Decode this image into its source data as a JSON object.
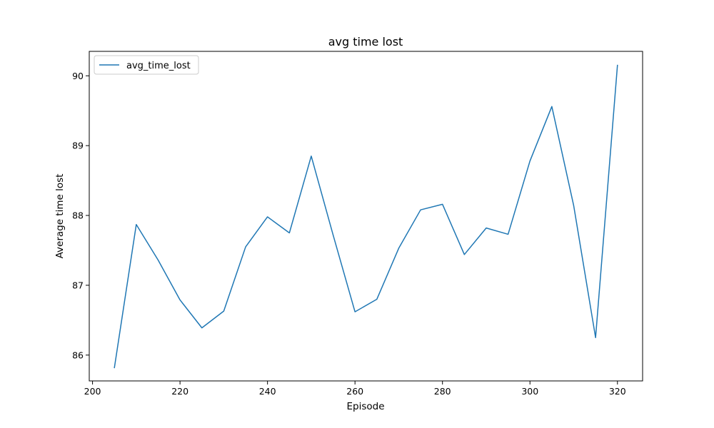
{
  "chart_data": {
    "type": "line",
    "title": "avg time lost",
    "xlabel": "Episode",
    "ylabel": "Average time lost",
    "xlim": [
      199.25,
      325.75
    ],
    "ylim": [
      85.63,
      90.35
    ],
    "xticks": [
      200,
      220,
      240,
      260,
      280,
      300,
      320
    ],
    "yticks": [
      86,
      87,
      88,
      89,
      90
    ],
    "grid": false,
    "legend": "top-left",
    "series": [
      {
        "name": "avg_time_lost",
        "color": "#1f77b4",
        "x": [
          205,
          210,
          215,
          220,
          225,
          230,
          235,
          240,
          245,
          250,
          255,
          260,
          265,
          270,
          275,
          280,
          285,
          290,
          295,
          300,
          305,
          310,
          315,
          320
        ],
        "y": [
          85.82,
          87.87,
          87.36,
          86.79,
          86.39,
          86.63,
          87.55,
          87.98,
          87.75,
          88.85,
          87.72,
          86.62,
          86.8,
          87.53,
          88.08,
          88.16,
          87.44,
          87.82,
          87.73,
          88.78,
          89.56,
          88.14,
          86.25,
          90.15
        ]
      }
    ]
  }
}
